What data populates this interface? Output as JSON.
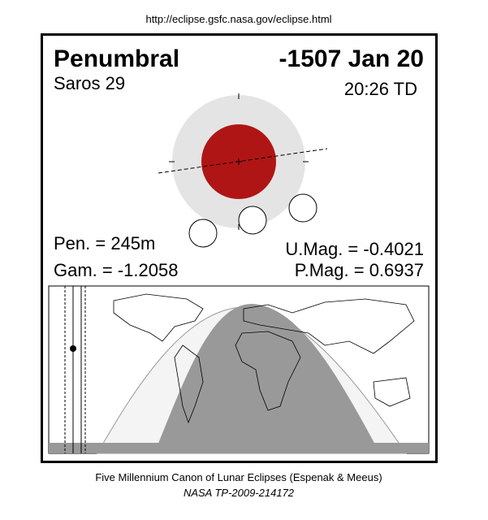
{
  "header": {
    "url": "http://eclipse.gsfc.nasa.gov/eclipse.html"
  },
  "eclipse": {
    "type": "Penumbral",
    "date": "-1507 Jan 20",
    "saros": "Saros  29",
    "time": "20:26 TD",
    "pen": "Pen. = 245m",
    "gam": "Gam. = -1.2058",
    "umag": "U.Mag. = -0.4021",
    "pmag": "P.Mag. = 0.6937"
  },
  "footer": {
    "canon": "Five Millennium Canon of Lunar Eclipses (Espenak & Meeus)",
    "ref": "NASA TP-2009-214172"
  }
}
